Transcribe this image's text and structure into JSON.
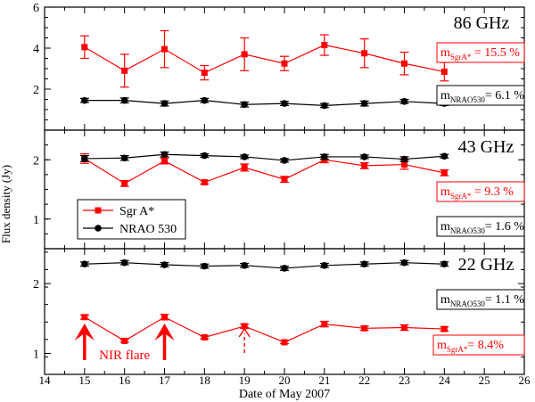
{
  "chart_data": {
    "type": "line",
    "xlabel": "Date of May 2007",
    "ylabel": "Flux density (Jy)",
    "x_ticks": [
      14,
      15,
      16,
      17,
      18,
      19,
      20,
      21,
      22,
      23,
      24,
      25,
      26
    ],
    "x_tick_labels": [
      "14",
      "15",
      "16",
      "17",
      "18",
      "19",
      "20",
      "21",
      "22",
      "23",
      "24",
      "25",
      "26"
    ],
    "xlim": [
      14,
      26
    ],
    "colors": {
      "sgra": "#ff0000",
      "nrao": "#000000"
    },
    "legend": {
      "placement": "middle-left",
      "entries": [
        {
          "series": "sgra",
          "label": "Sgr A*"
        },
        {
          "series": "nrao",
          "label": "NRAO 530"
        }
      ]
    },
    "panels": [
      {
        "id": "p86",
        "title": "86 GHz",
        "ylim": [
          0,
          6
        ],
        "y_ticks": [
          2,
          4,
          6
        ],
        "y_tick_labels": [
          "2",
          "4",
          "6"
        ],
        "series": [
          {
            "name": "Sgr A*",
            "key": "sgra",
            "x": [
              15,
              16,
              17,
              18,
              19,
              20,
              21,
              22,
              23,
              24
            ],
            "y": [
              4.05,
              2.9,
              3.95,
              2.8,
              3.7,
              3.25,
              4.15,
              3.75,
              3.25,
              2.85
            ],
            "err": [
              0.55,
              0.8,
              0.9,
              0.35,
              0.8,
              0.35,
              0.5,
              0.7,
              0.55,
              0.45
            ]
          },
          {
            "name": "NRAO 530",
            "key": "nrao",
            "x": [
              15,
              16,
              17,
              18,
              19,
              20,
              21,
              22,
              23,
              24
            ],
            "y": [
              1.45,
              1.45,
              1.3,
              1.45,
              1.25,
              1.3,
              1.2,
              1.3,
              1.4,
              1.3
            ],
            "err": [
              0.1,
              0.12,
              0.12,
              0.1,
              0.12,
              0.1,
              0.1,
              0.12,
              0.1,
              0.1
            ]
          }
        ],
        "annotations": [
          {
            "key": "sgra",
            "main": "m",
            "sub": "SgrA*",
            "value": " = 15.5 %"
          },
          {
            "key": "nrao",
            "main": "m",
            "sub": "NRAO530",
            "value": "= 6.1 %"
          }
        ]
      },
      {
        "id": "p43",
        "title": "43 GHz",
        "ylim": [
          0.5,
          2.5
        ],
        "y_ticks": [
          1,
          2
        ],
        "y_tick_labels": [
          "1",
          "2"
        ],
        "series": [
          {
            "name": "Sgr A*",
            "key": "sgra",
            "x": [
              15,
              16,
              17,
              18,
              19,
              20,
              21,
              22,
              23,
              24
            ],
            "y": [
              2.02,
              1.6,
              1.98,
              1.62,
              1.87,
              1.67,
              2.0,
              1.9,
              1.92,
              1.78
            ],
            "err": [
              0.08,
              0.05,
              0.05,
              0.03,
              0.06,
              0.05,
              0.05,
              0.05,
              0.08,
              0.05
            ]
          },
          {
            "name": "NRAO 530",
            "key": "nrao",
            "x": [
              15,
              16,
              17,
              18,
              19,
              20,
              21,
              22,
              23,
              24
            ],
            "y": [
              2.02,
              2.03,
              2.09,
              2.07,
              2.05,
              1.99,
              2.05,
              2.05,
              2.01,
              2.06
            ],
            "err": [
              0.05,
              0.04,
              0.04,
              0.03,
              0.03,
              0.03,
              0.04,
              0.03,
              0.04,
              0.03
            ]
          }
        ],
        "annotations": [
          {
            "key": "sgra",
            "main": "m",
            "sub": "SgrA*",
            "value": " = 9.3 %"
          },
          {
            "key": "nrao",
            "main": "m",
            "sub": "NRAO530",
            "value": "= 1.6 %"
          }
        ]
      },
      {
        "id": "p22",
        "title": "22 GHz",
        "ylim": [
          0.7,
          2.5
        ],
        "y_ticks": [
          1,
          2
        ],
        "y_tick_labels": [
          "1",
          "2"
        ],
        "series": [
          {
            "name": "Sgr A*",
            "key": "sgra",
            "x": [
              15,
              16,
              17,
              18,
              19,
              20,
              21,
              22,
              23,
              24
            ],
            "y": [
              1.52,
              1.18,
              1.52,
              1.23,
              1.39,
              1.16,
              1.42,
              1.36,
              1.37,
              1.35
            ],
            "err": [
              0.03,
              0.02,
              0.04,
              0.02,
              0.03,
              0.02,
              0.04,
              0.03,
              0.04,
              0.03
            ]
          },
          {
            "name": "NRAO 530",
            "key": "nrao",
            "x": [
              15,
              16,
              17,
              18,
              19,
              20,
              21,
              22,
              23,
              24
            ],
            "y": [
              2.28,
              2.3,
              2.27,
              2.25,
              2.26,
              2.22,
              2.26,
              2.28,
              2.3,
              2.28
            ],
            "err": [
              0.03,
              0.03,
              0.03,
              0.03,
              0.03,
              0.03,
              0.03,
              0.03,
              0.03,
              0.03
            ]
          }
        ],
        "annotations": [
          {
            "key": "nrao",
            "main": "m",
            "sub": "NRAO530",
            "value": "= 1.1 %"
          },
          {
            "key": "sgra",
            "main": "m",
            "sub": "SgrA*",
            "value": "= 8.4%"
          }
        ],
        "flare_arrows": [
          {
            "x": 15,
            "style": "solid"
          },
          {
            "x": 17,
            "style": "solid"
          },
          {
            "x": 19,
            "style": "dashed"
          }
        ],
        "flare_label": "NIR flare"
      }
    ]
  }
}
